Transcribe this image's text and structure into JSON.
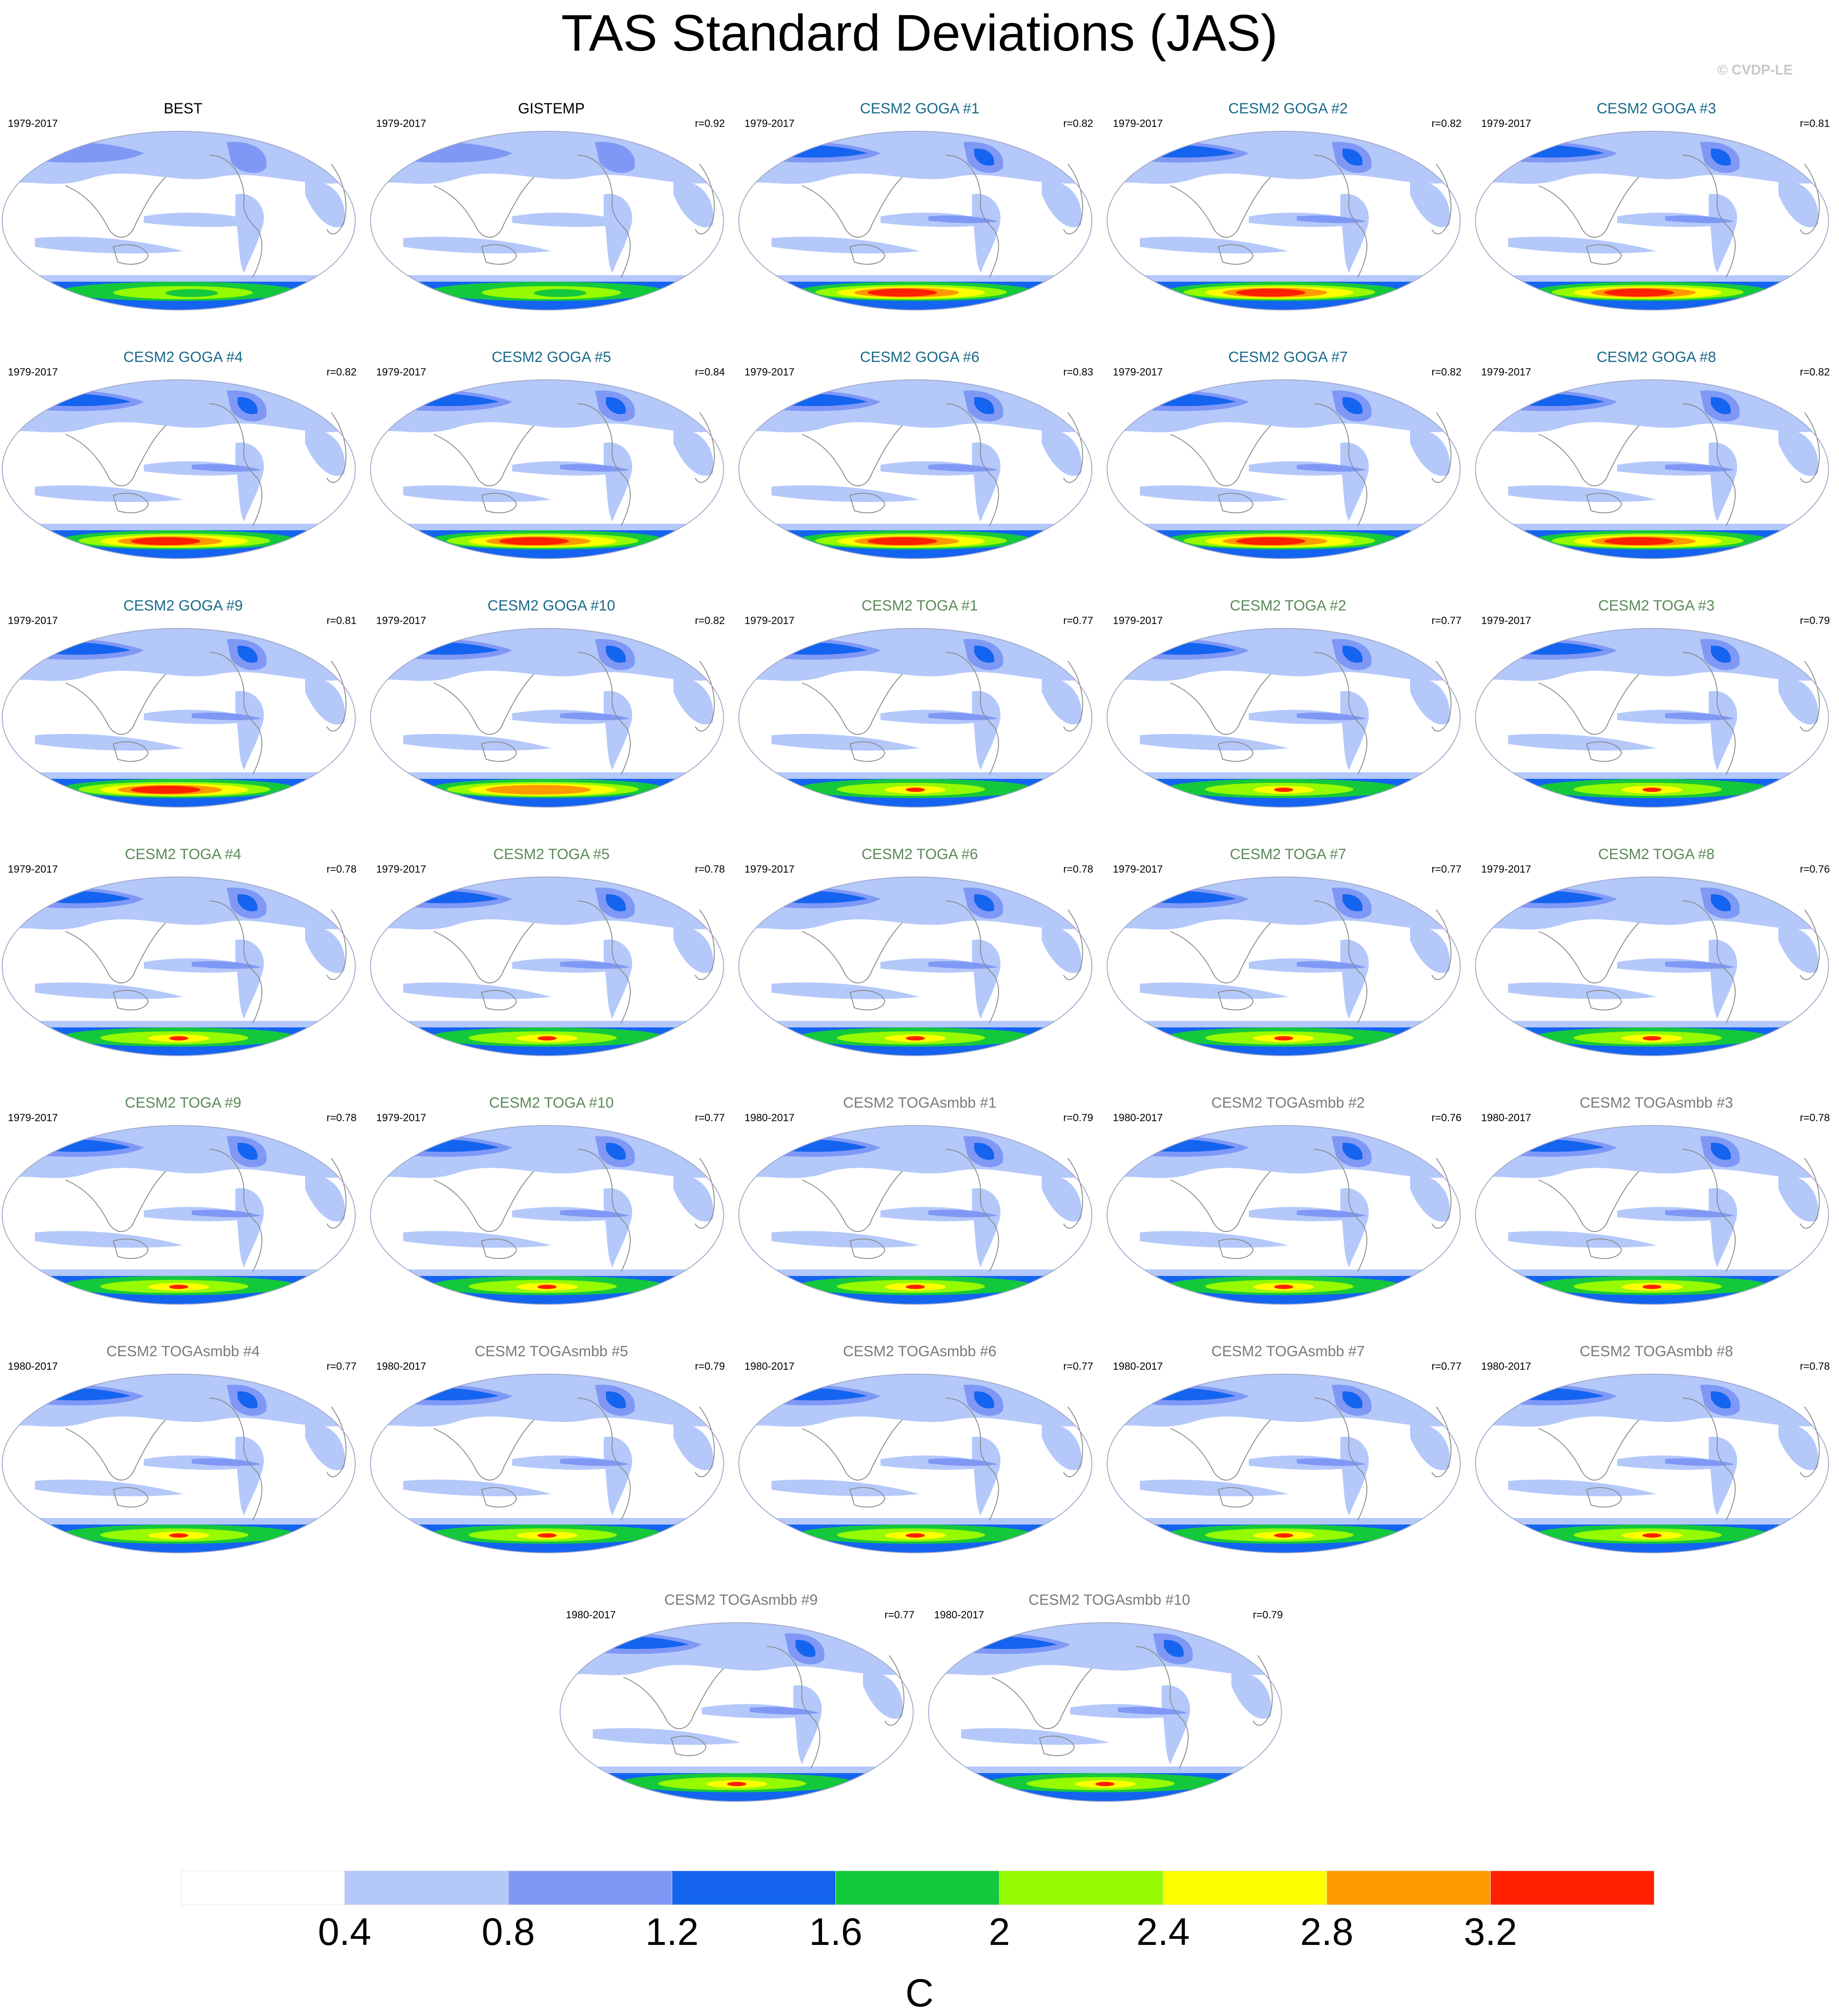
{
  "title": "TAS Standard Deviations (JAS)",
  "credit": "© CVDP-LE",
  "colors": {
    "title_obs": "#000000",
    "title_goga": "#1a6a8a",
    "title_toga": "#5a8a5a",
    "title_smbb": "#7a7a7a"
  },
  "panels": [
    {
      "title": "BEST",
      "years": "1979-2017",
      "r": "",
      "group": "obs",
      "south": "green"
    },
    {
      "title": "GISTEMP",
      "years": "1979-2017",
      "r": "r=0.92",
      "group": "obs",
      "south": "green"
    },
    {
      "title": "CESM2 GOGA #1",
      "years": "1979-2017",
      "r": "r=0.82",
      "group": "goga",
      "south": "red"
    },
    {
      "title": "CESM2 GOGA #2",
      "years": "1979-2017",
      "r": "r=0.82",
      "group": "goga",
      "south": "red"
    },
    {
      "title": "CESM2 GOGA #3",
      "years": "1979-2017",
      "r": "r=0.81",
      "group": "goga",
      "south": "red"
    },
    {
      "title": "CESM2 GOGA #4",
      "years": "1979-2017",
      "r": "r=0.82",
      "group": "goga",
      "south": "red"
    },
    {
      "title": "CESM2 GOGA #5",
      "years": "1979-2017",
      "r": "r=0.84",
      "group": "goga",
      "south": "red"
    },
    {
      "title": "CESM2 GOGA #6",
      "years": "1979-2017",
      "r": "r=0.83",
      "group": "goga",
      "south": "red"
    },
    {
      "title": "CESM2 GOGA #7",
      "years": "1979-2017",
      "r": "r=0.82",
      "group": "goga",
      "south": "red"
    },
    {
      "title": "CESM2 GOGA #8",
      "years": "1979-2017",
      "r": "r=0.82",
      "group": "goga",
      "south": "red"
    },
    {
      "title": "CESM2 GOGA #9",
      "years": "1979-2017",
      "r": "r=0.81",
      "group": "goga",
      "south": "red"
    },
    {
      "title": "CESM2 GOGA #10",
      "years": "1979-2017",
      "r": "r=0.82",
      "group": "goga",
      "south": "orange"
    },
    {
      "title": "CESM2 TOGA #1",
      "years": "1979-2017",
      "r": "r=0.77",
      "group": "toga",
      "south": "lime"
    },
    {
      "title": "CESM2 TOGA #2",
      "years": "1979-2017",
      "r": "r=0.77",
      "group": "toga",
      "south": "lime"
    },
    {
      "title": "CESM2 TOGA #3",
      "years": "1979-2017",
      "r": "r=0.79",
      "group": "toga",
      "south": "lime"
    },
    {
      "title": "CESM2 TOGA #4",
      "years": "1979-2017",
      "r": "r=0.78",
      "group": "toga",
      "south": "lime"
    },
    {
      "title": "CESM2 TOGA #5",
      "years": "1979-2017",
      "r": "r=0.78",
      "group": "toga",
      "south": "lime"
    },
    {
      "title": "CESM2 TOGA #6",
      "years": "1979-2017",
      "r": "r=0.78",
      "group": "toga",
      "south": "lime"
    },
    {
      "title": "CESM2 TOGA #7",
      "years": "1979-2017",
      "r": "r=0.77",
      "group": "toga",
      "south": "lime"
    },
    {
      "title": "CESM2 TOGA #8",
      "years": "1979-2017",
      "r": "r=0.76",
      "group": "toga",
      "south": "lime"
    },
    {
      "title": "CESM2 TOGA #9",
      "years": "1979-2017",
      "r": "r=0.78",
      "group": "toga",
      "south": "lime"
    },
    {
      "title": "CESM2 TOGA #10",
      "years": "1979-2017",
      "r": "r=0.77",
      "group": "toga",
      "south": "lime"
    },
    {
      "title": "CESM2 TOGAsmbb #1",
      "years": "1980-2017",
      "r": "r=0.79",
      "group": "smbb",
      "south": "lime"
    },
    {
      "title": "CESM2 TOGAsmbb #2",
      "years": "1980-2017",
      "r": "r=0.76",
      "group": "smbb",
      "south": "lime"
    },
    {
      "title": "CESM2 TOGAsmbb #3",
      "years": "1980-2017",
      "r": "r=0.78",
      "group": "smbb",
      "south": "lime"
    },
    {
      "title": "CESM2 TOGAsmbb #4",
      "years": "1980-2017",
      "r": "r=0.77",
      "group": "smbb",
      "south": "lime"
    },
    {
      "title": "CESM2 TOGAsmbb #5",
      "years": "1980-2017",
      "r": "r=0.79",
      "group": "smbb",
      "south": "lime"
    },
    {
      "title": "CESM2 TOGAsmbb #6",
      "years": "1980-2017",
      "r": "r=0.77",
      "group": "smbb",
      "south": "lime"
    },
    {
      "title": "CESM2 TOGAsmbb #7",
      "years": "1980-2017",
      "r": "r=0.77",
      "group": "smbb",
      "south": "lime"
    },
    {
      "title": "CESM2 TOGAsmbb #8",
      "years": "1980-2017",
      "r": "r=0.78",
      "group": "smbb",
      "south": "lime"
    },
    {
      "title": "CESM2 TOGAsmbb #9",
      "years": "1980-2017",
      "r": "r=0.77",
      "group": "smbb",
      "south": "lime"
    },
    {
      "title": "CESM2 TOGAsmbb #10",
      "years": "1980-2017",
      "r": "r=0.79",
      "group": "smbb",
      "south": "lime"
    }
  ],
  "chart_data": {
    "type": "heatmap",
    "title": "TAS Standard Deviations (JAS)",
    "projection": "Robinson (Pacific-centered)",
    "colorbar": {
      "label": "C",
      "levels": [
        0.4,
        0.8,
        1.2,
        1.6,
        2,
        2.4,
        2.8,
        3.2
      ],
      "tick_labels": [
        "0.4",
        "0.8",
        "1.2",
        "1.6",
        "2",
        "2.4",
        "2.8",
        "3.2"
      ],
      "colors": [
        "#ffffff",
        "#b4c8fa",
        "#8098f5",
        "#1464f0",
        "#14c83c",
        "#96fa00",
        "#ffff00",
        "#ff9900",
        "#ff2000"
      ]
    },
    "panels": [
      {
        "title": "BEST",
        "period": "1979-2017",
        "r": null
      },
      {
        "title": "GISTEMP",
        "period": "1979-2017",
        "r": 0.92
      },
      {
        "title": "CESM2 GOGA #1",
        "period": "1979-2017",
        "r": 0.82
      },
      {
        "title": "CESM2 GOGA #2",
        "period": "1979-2017",
        "r": 0.82
      },
      {
        "title": "CESM2 GOGA #3",
        "period": "1979-2017",
        "r": 0.81
      },
      {
        "title": "CESM2 GOGA #4",
        "period": "1979-2017",
        "r": 0.82
      },
      {
        "title": "CESM2 GOGA #5",
        "period": "1979-2017",
        "r": 0.84
      },
      {
        "title": "CESM2 GOGA #6",
        "period": "1979-2017",
        "r": 0.83
      },
      {
        "title": "CESM2 GOGA #7",
        "period": "1979-2017",
        "r": 0.82
      },
      {
        "title": "CESM2 GOGA #8",
        "period": "1979-2017",
        "r": 0.82
      },
      {
        "title": "CESM2 GOGA #9",
        "period": "1979-2017",
        "r": 0.81
      },
      {
        "title": "CESM2 GOGA #10",
        "period": "1979-2017",
        "r": 0.82
      },
      {
        "title": "CESM2 TOGA #1",
        "period": "1979-2017",
        "r": 0.77
      },
      {
        "title": "CESM2 TOGA #2",
        "period": "1979-2017",
        "r": 0.77
      },
      {
        "title": "CESM2 TOGA #3",
        "period": "1979-2017",
        "r": 0.79
      },
      {
        "title": "CESM2 TOGA #4",
        "period": "1979-2017",
        "r": 0.78
      },
      {
        "title": "CESM2 TOGA #5",
        "period": "1979-2017",
        "r": 0.78
      },
      {
        "title": "CESM2 TOGA #6",
        "period": "1979-2017",
        "r": 0.78
      },
      {
        "title": "CESM2 TOGA #7",
        "period": "1979-2017",
        "r": 0.77
      },
      {
        "title": "CESM2 TOGA #8",
        "period": "1979-2017",
        "r": 0.76
      },
      {
        "title": "CESM2 TOGA #9",
        "period": "1979-2017",
        "r": 0.78
      },
      {
        "title": "CESM2 TOGA #10",
        "period": "1979-2017",
        "r": 0.77
      },
      {
        "title": "CESM2 TOGAsmbb #1",
        "period": "1980-2017",
        "r": 0.79
      },
      {
        "title": "CESM2 TOGAsmbb #2",
        "period": "1980-2017",
        "r": 0.76
      },
      {
        "title": "CESM2 TOGAsmbb #3",
        "period": "1980-2017",
        "r": 0.78
      },
      {
        "title": "CESM2 TOGAsmbb #4",
        "period": "1980-2017",
        "r": 0.77
      },
      {
        "title": "CESM2 TOGAsmbb #5",
        "period": "1980-2017",
        "r": 0.79
      },
      {
        "title": "CESM2 TOGAsmbb #6",
        "period": "1980-2017",
        "r": 0.77
      },
      {
        "title": "CESM2 TOGAsmbb #7",
        "period": "1980-2017",
        "r": 0.77
      },
      {
        "title": "CESM2 TOGAsmbb #8",
        "period": "1980-2017",
        "r": 0.78
      },
      {
        "title": "CESM2 TOGAsmbb #9",
        "period": "1980-2017",
        "r": 0.77
      },
      {
        "title": "CESM2 TOGAsmbb #10",
        "period": "1980-2017",
        "r": 0.79
      }
    ]
  }
}
